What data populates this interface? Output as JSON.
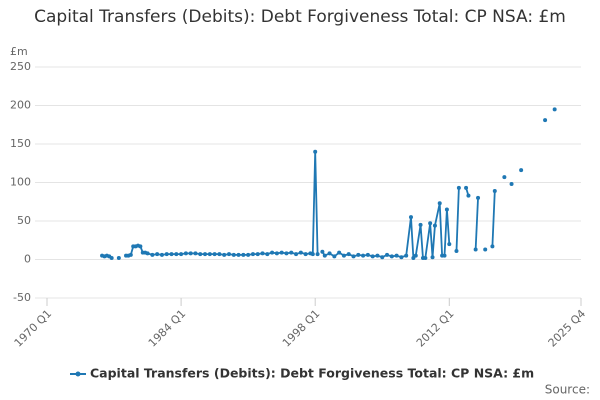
{
  "chart_data": {
    "type": "line",
    "title": "Capital Transfers (Debits): Debt Forgiveness Total: CP NSA: £m",
    "y_label": "£m",
    "source": "Source:",
    "xlim": [
      1970,
      2025.75
    ],
    "xticks": [
      {
        "value": 1970,
        "label": "1970 Q1"
      },
      {
        "value": 1984,
        "label": "1984 Q1"
      },
      {
        "value": 1998,
        "label": "1998 Q1"
      },
      {
        "value": 2012,
        "label": "2012 Q1"
      },
      {
        "value": 2025.75,
        "label": "2025 Q4"
      }
    ],
    "ylim": [
      -50,
      250
    ],
    "yticks": [
      -50,
      0,
      50,
      100,
      150,
      200,
      250
    ],
    "grid": true,
    "legend": "bottom",
    "series": [
      {
        "name": "Capital Transfers (Debits): Debt Forgiveness Total: CP NSA: £m",
        "color": "#1f78b4",
        "x": [
          1975.75,
          1976,
          1976.25,
          1976.5,
          1976.75,
          1977,
          1977.5,
          1977.75,
          1978.25,
          1978.5,
          1978.75,
          1979,
          1979.25,
          1979.5,
          1979.75,
          1980,
          1980.25,
          1980.5,
          1981,
          1981.5,
          1982,
          1982.5,
          1983,
          1983.5,
          1984,
          1984.5,
          1985,
          1985.5,
          1986,
          1986.5,
          1987,
          1987.5,
          1988,
          1988.5,
          1989,
          1989.5,
          1990,
          1990.5,
          1991,
          1991.5,
          1992,
          1992.5,
          1993,
          1993.5,
          1994,
          1994.5,
          1995,
          1995.5,
          1996,
          1996.5,
          1997,
          1997.5,
          1997.75,
          1998,
          1998.25,
          1998.5,
          1998.75,
          1999,
          1999.5,
          2000,
          2000.5,
          2001,
          2001.5,
          2002,
          2002.5,
          2003,
          2003.5,
          2004,
          2004.5,
          2005,
          2005.5,
          2006,
          2006.5,
          2007,
          2007.5,
          2008,
          2008.25,
          2008.5,
          2009,
          2009.25,
          2009.5,
          2010,
          2010.25,
          2010.5,
          2011,
          2011.25,
          2011.5,
          2011.75,
          2012,
          2012.25,
          2012.75,
          2013,
          2013.25,
          2013.75,
          2014,
          2014.25,
          2014.75,
          2015,
          2015.25,
          2015.75,
          2016,
          2016.5,
          2016.75,
          2017,
          2017.75,
          2018,
          2018.5,
          2019,
          2019.5,
          2020,
          2022,
          2022.5,
          2023
        ],
        "values": [
          5,
          4,
          5,
          4,
          2,
          null,
          2,
          null,
          5,
          5,
          6,
          17,
          17,
          18,
          17,
          9,
          9,
          8,
          6,
          7,
          6,
          7,
          7,
          7,
          7,
          8,
          8,
          8,
          7,
          7,
          7,
          7,
          7,
          6,
          7,
          6,
          6,
          6,
          6,
          7,
          7,
          8,
          7,
          9,
          8,
          9,
          8,
          9,
          7,
          9,
          7,
          8,
          7,
          140,
          7,
          null,
          10,
          5,
          8,
          4,
          9,
          5,
          7,
          4,
          6,
          5,
          6,
          4,
          5,
          3,
          6,
          4,
          5,
          3,
          5,
          55,
          2,
          5,
          45,
          2,
          2,
          47,
          3,
          44,
          73,
          5,
          5,
          65,
          20,
          null,
          11,
          93,
          null,
          93,
          83,
          null,
          13,
          80,
          null,
          13,
          null,
          17,
          89,
          null,
          107,
          null,
          98,
          null,
          116,
          null,
          181,
          null,
          195
        ]
      }
    ]
  }
}
